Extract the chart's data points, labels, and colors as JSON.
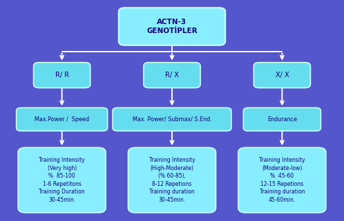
{
  "bg_color": "#5555cc",
  "box_fill_top": "#88eeff",
  "box_fill_mid": "#66ddee",
  "box_fill_bottom": "#88eeff",
  "box_edge": "#ccffff",
  "text_color": "#110077",
  "arrow_color": "#ffffff",
  "title": "ACTN-3\nGENOTİPLER",
  "genotypes": [
    "R/ R",
    "R/ X",
    "X/ X"
  ],
  "performance": [
    "Max.Power /  Speed",
    "Max. Power/ Submax/ S.End.",
    "Endurance"
  ],
  "training": [
    "Training Intensity\n(Very high)\n%  85-100\n1-6 Repetitons\nTraining Duration\n30-45min.",
    "Training Intensity\n(High-Moderate)\n(% 60-85),\n8-12 Repetions\nTraining duration\n30-45min.",
    "Training Intensity\n(Moderate-low)\n%  45-60\n12-15 Repetions\nTraining duration\n45-60min."
  ],
  "fig_w": 4.98,
  "fig_h": 3.21,
  "dpi": 100
}
